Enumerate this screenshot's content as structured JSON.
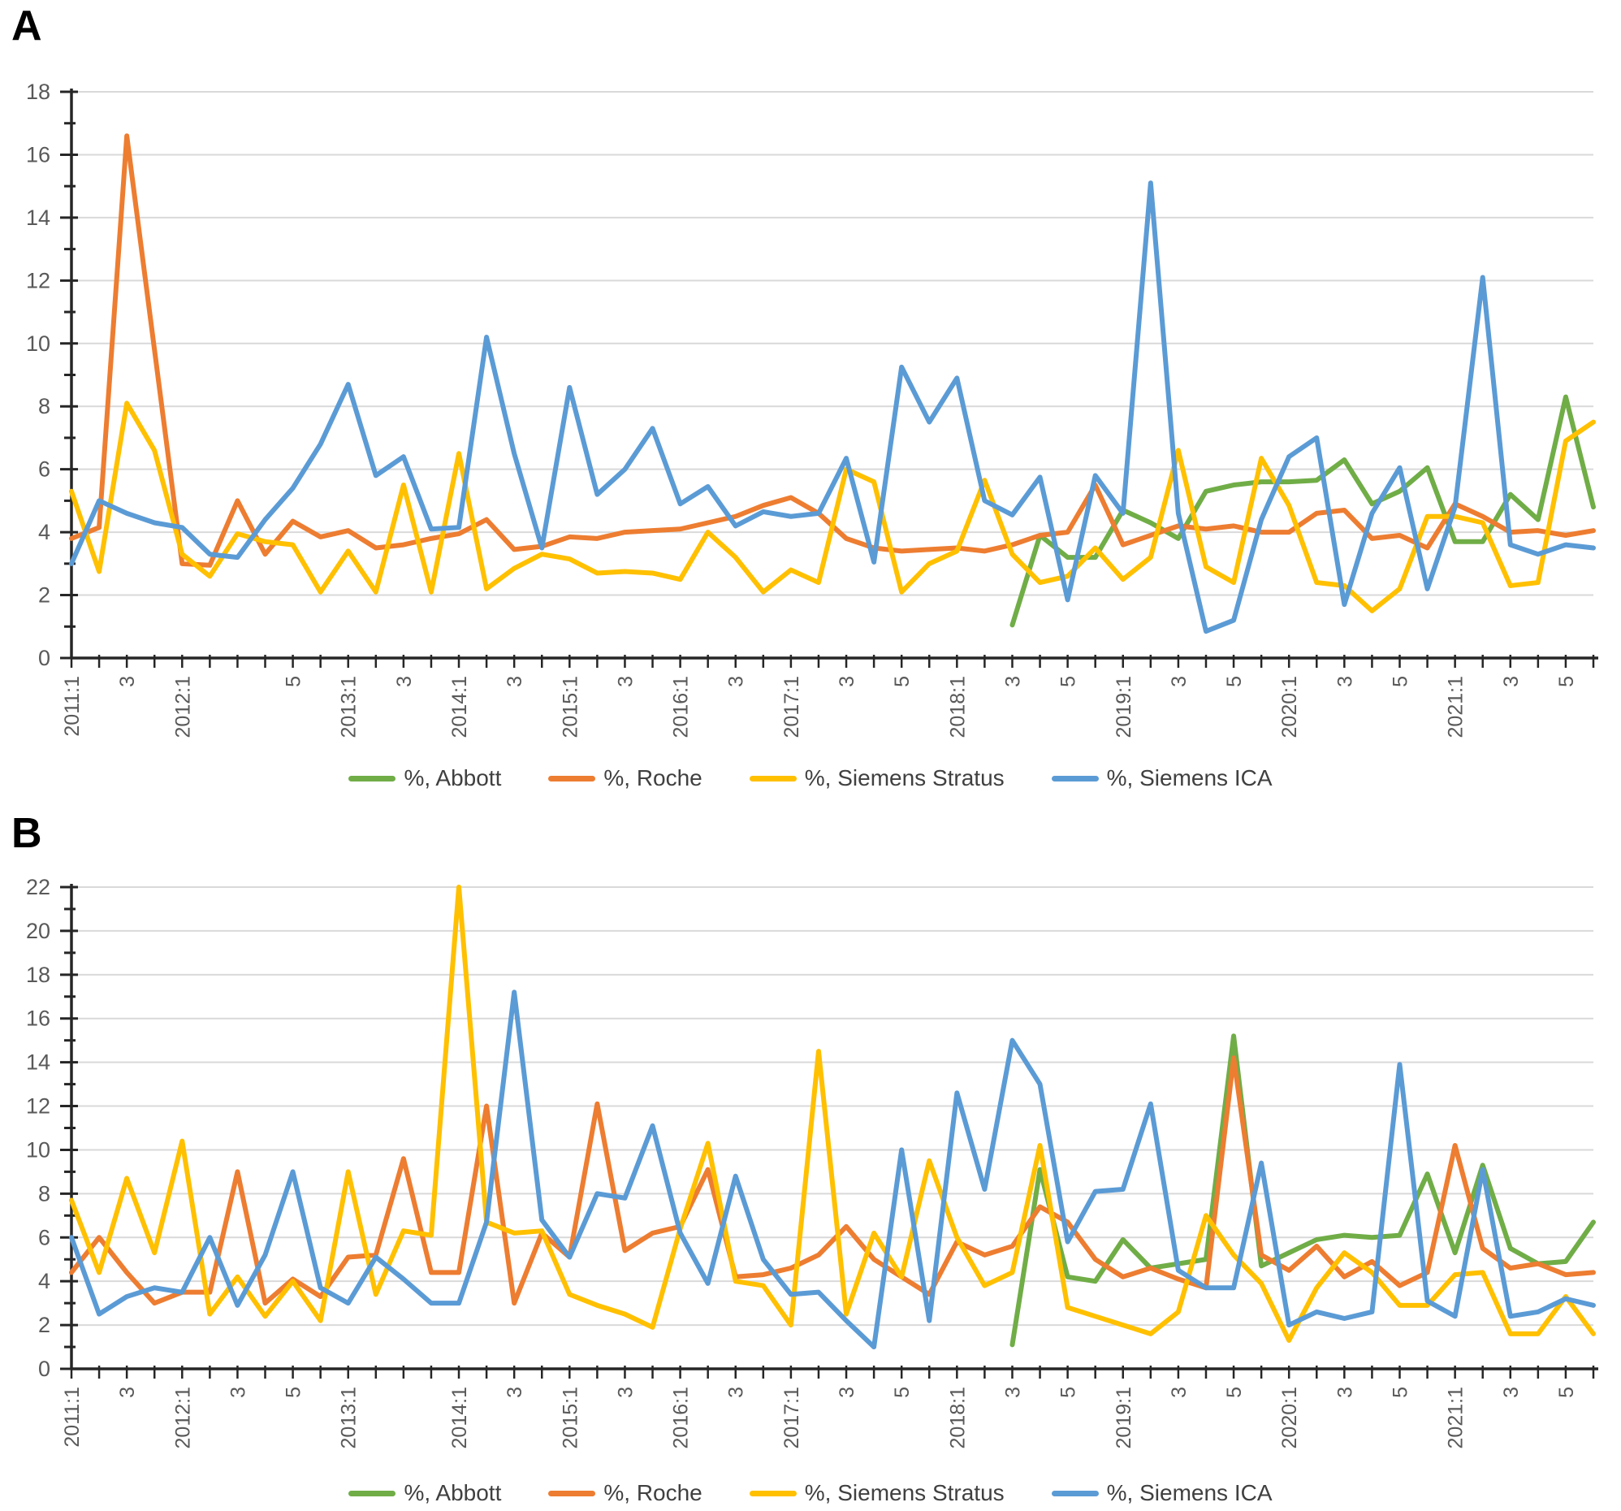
{
  "page": {
    "background": "#ffffff"
  },
  "colors": {
    "abbott": "#70AD47",
    "roche": "#ED7D31",
    "stratus": "#FFC000",
    "ica": "#5B9BD5",
    "gridline": "#D9D9D9",
    "axis": "#262626",
    "tick_text": "#595959"
  },
  "chart_data": [
    {
      "type": "line",
      "panel": "A",
      "title": "",
      "xlabel": "",
      "ylabel": "",
      "ylim": [
        0,
        18
      ],
      "ytick_step": 2,
      "yticks": [
        0,
        2,
        4,
        6,
        8,
        10,
        12,
        14,
        16,
        18
      ],
      "grid": true,
      "legend_position": "bottom",
      "categories": [
        "2011:1",
        "",
        "3",
        "",
        "2012:1",
        "",
        "",
        "",
        "5",
        "",
        "2013:1",
        "",
        "3",
        "",
        "2014:1",
        "",
        "3",
        "",
        "2015:1",
        "",
        "3",
        "",
        "2016:1",
        "",
        "3",
        "",
        "2017:1",
        "",
        "3",
        "",
        "5",
        "",
        "2018:1",
        "",
        "3",
        "",
        "5",
        "",
        "2019:1",
        "",
        "3",
        "",
        "5",
        "",
        "2020:1",
        "",
        "3",
        "",
        "5",
        "",
        "2021:1",
        "",
        "3",
        "",
        "5",
        ""
      ],
      "series": [
        {
          "name": "%, Abbott",
          "color": "#70AD47",
          "values": [
            null,
            null,
            null,
            null,
            null,
            null,
            null,
            null,
            null,
            null,
            null,
            null,
            null,
            null,
            null,
            null,
            null,
            null,
            null,
            null,
            null,
            null,
            null,
            null,
            null,
            null,
            null,
            null,
            null,
            null,
            null,
            null,
            null,
            null,
            1.05,
            3.9,
            3.2,
            3.2,
            4.7,
            4.3,
            3.8,
            5.3,
            5.5,
            5.6,
            5.6,
            5.65,
            6.3,
            4.9,
            5.3,
            6.05,
            3.7,
            3.7,
            5.2,
            4.4,
            8.3,
            4.8
          ]
        },
        {
          "name": "%, Roche",
          "color": "#ED7D31",
          "values": [
            3.8,
            4.15,
            16.6,
            9.8,
            3.0,
            2.95,
            5.0,
            3.3,
            4.35,
            3.85,
            4.05,
            3.5,
            3.6,
            3.8,
            3.95,
            4.4,
            3.45,
            3.55,
            3.85,
            3.8,
            4.0,
            4.05,
            4.1,
            4.3,
            4.5,
            4.85,
            5.1,
            4.6,
            3.8,
            3.5,
            3.4,
            3.45,
            3.5,
            3.4,
            3.6,
            3.9,
            4.0,
            5.5,
            3.6,
            3.9,
            4.2,
            4.1,
            4.2,
            4.0,
            4.0,
            4.6,
            4.7,
            3.8,
            3.9,
            3.5,
            4.9,
            4.5,
            4.0,
            4.05,
            3.9,
            4.05
          ]
        },
        {
          "name": "%, Siemens Stratus",
          "color": "#FFC000",
          "values": [
            5.3,
            2.75,
            8.1,
            6.6,
            3.3,
            2.6,
            3.95,
            3.7,
            3.6,
            2.1,
            3.4,
            2.1,
            5.5,
            2.1,
            6.5,
            2.2,
            2.85,
            3.3,
            3.15,
            2.7,
            2.75,
            2.7,
            2.5,
            4.0,
            3.2,
            2.1,
            2.8,
            2.4,
            6.0,
            5.6,
            2.1,
            3.0,
            3.4,
            5.65,
            3.3,
            2.4,
            2.6,
            3.5,
            2.5,
            3.2,
            6.6,
            2.9,
            2.4,
            6.35,
            4.85,
            2.4,
            2.3,
            1.5,
            2.2,
            4.5,
            4.5,
            4.3,
            2.3,
            2.4,
            6.9,
            7.5
          ]
        },
        {
          "name": "%, Siemens ICA",
          "color": "#5B9BD5",
          "values": [
            3.0,
            5.0,
            4.6,
            4.3,
            4.15,
            3.3,
            3.2,
            4.4,
            5.4,
            6.8,
            8.7,
            5.8,
            6.4,
            4.1,
            4.15,
            10.2,
            6.5,
            3.5,
            8.6,
            5.2,
            6.0,
            7.3,
            4.9,
            5.45,
            4.2,
            4.65,
            4.5,
            4.6,
            6.35,
            3.05,
            9.25,
            7.5,
            8.9,
            5.0,
            4.55,
            5.75,
            1.85,
            5.8,
            4.6,
            15.1,
            4.6,
            0.85,
            1.2,
            4.4,
            6.4,
            7.0,
            1.7,
            4.6,
            6.05,
            2.2,
            4.8,
            12.1,
            3.6,
            3.3,
            3.6,
            3.5
          ]
        }
      ],
      "legend": [
        "%, Abbott",
        "%, Roche",
        "%, Siemens Stratus",
        "%, Siemens ICA"
      ]
    },
    {
      "type": "line",
      "panel": "B",
      "title": "",
      "xlabel": "",
      "ylabel": "",
      "ylim": [
        0,
        22
      ],
      "ytick_step": 2,
      "yticks": [
        0,
        2,
        4,
        6,
        8,
        10,
        12,
        14,
        16,
        18,
        20,
        22
      ],
      "grid": true,
      "legend_position": "bottom",
      "categories": [
        "2011:1",
        "",
        "3",
        "",
        "2012:1",
        "",
        "3",
        "",
        "5",
        "",
        "2013:1",
        "",
        "",
        "",
        "2014:1",
        "",
        "3",
        "",
        "2015:1",
        "",
        "3",
        "",
        "2016:1",
        "",
        "3",
        "",
        "2017:1",
        "",
        "3",
        "",
        "5",
        "",
        "2018:1",
        "",
        "3",
        "",
        "5",
        "",
        "2019:1",
        "",
        "3",
        "",
        "5",
        "",
        "2020:1",
        "",
        "3",
        "",
        "5",
        "",
        "2021:1",
        "",
        "3",
        "",
        "5",
        ""
      ],
      "series": [
        {
          "name": "%, Abbott",
          "color": "#70AD47",
          "values": [
            null,
            null,
            null,
            null,
            null,
            null,
            null,
            null,
            null,
            null,
            null,
            null,
            null,
            null,
            null,
            null,
            null,
            null,
            null,
            null,
            null,
            null,
            null,
            null,
            null,
            null,
            null,
            null,
            null,
            null,
            null,
            null,
            null,
            null,
            1.1,
            9.1,
            4.2,
            4.0,
            5.9,
            4.6,
            4.8,
            5.0,
            15.2,
            4.7,
            5.3,
            5.9,
            6.1,
            6.0,
            6.1,
            8.9,
            5.3,
            9.3,
            5.5,
            4.8,
            4.9,
            6.7
          ]
        },
        {
          "name": "%, Roche",
          "color": "#ED7D31",
          "values": [
            4.4,
            6.0,
            4.4,
            3.0,
            3.5,
            3.5,
            9.0,
            3.0,
            4.1,
            3.3,
            5.1,
            5.2,
            9.6,
            4.4,
            4.4,
            12.0,
            3.0,
            6.2,
            5.1,
            12.1,
            5.4,
            6.2,
            6.5,
            9.1,
            4.2,
            4.3,
            4.6,
            5.2,
            6.5,
            5.0,
            4.2,
            3.4,
            5.8,
            5.2,
            5.6,
            7.4,
            6.7,
            5.0,
            4.2,
            4.6,
            4.1,
            3.7,
            14.2,
            5.2,
            4.5,
            5.6,
            4.2,
            4.9,
            3.8,
            4.4,
            10.2,
            5.5,
            4.6,
            4.8,
            4.3,
            4.4
          ]
        },
        {
          "name": "%, Siemens Stratus",
          "color": "#FFC000",
          "values": [
            7.7,
            4.4,
            8.7,
            5.3,
            10.4,
            2.5,
            4.2,
            2.4,
            4.0,
            2.2,
            9.0,
            3.4,
            6.3,
            6.1,
            22.0,
            6.7,
            6.2,
            6.3,
            3.4,
            2.9,
            2.5,
            1.9,
            6.4,
            10.3,
            4.0,
            3.8,
            2.0,
            14.5,
            2.5,
            6.2,
            4.2,
            9.5,
            6.0,
            3.8,
            4.4,
            10.2,
            2.8,
            2.4,
            2.0,
            1.6,
            2.6,
            7.0,
            5.2,
            3.9,
            1.3,
            3.7,
            5.3,
            4.4,
            2.9,
            2.9,
            4.3,
            4.4,
            1.6,
            1.6,
            3.3,
            1.6
          ]
        },
        {
          "name": "%, Siemens ICA",
          "color": "#5B9BD5",
          "values": [
            6.0,
            2.5,
            3.3,
            3.7,
            3.5,
            6.0,
            2.9,
            5.2,
            9.0,
            3.7,
            3.0,
            5.1,
            4.1,
            3.0,
            3.0,
            6.7,
            17.2,
            6.8,
            5.1,
            8.0,
            7.8,
            11.1,
            6.2,
            3.9,
            8.8,
            5.0,
            3.4,
            3.5,
            2.2,
            1.0,
            10.0,
            2.2,
            12.6,
            8.2,
            15.0,
            13.0,
            5.8,
            8.1,
            8.2,
            12.1,
            4.5,
            3.7,
            3.7,
            9.4,
            2.0,
            2.6,
            2.3,
            2.6,
            13.9,
            3.1,
            2.4,
            9.1,
            2.4,
            2.6,
            3.2,
            2.9
          ]
        }
      ],
      "legend": [
        "%, Abbott",
        "%, Roche",
        "%, Siemens Stratus",
        "%, Siemens ICA"
      ]
    }
  ]
}
